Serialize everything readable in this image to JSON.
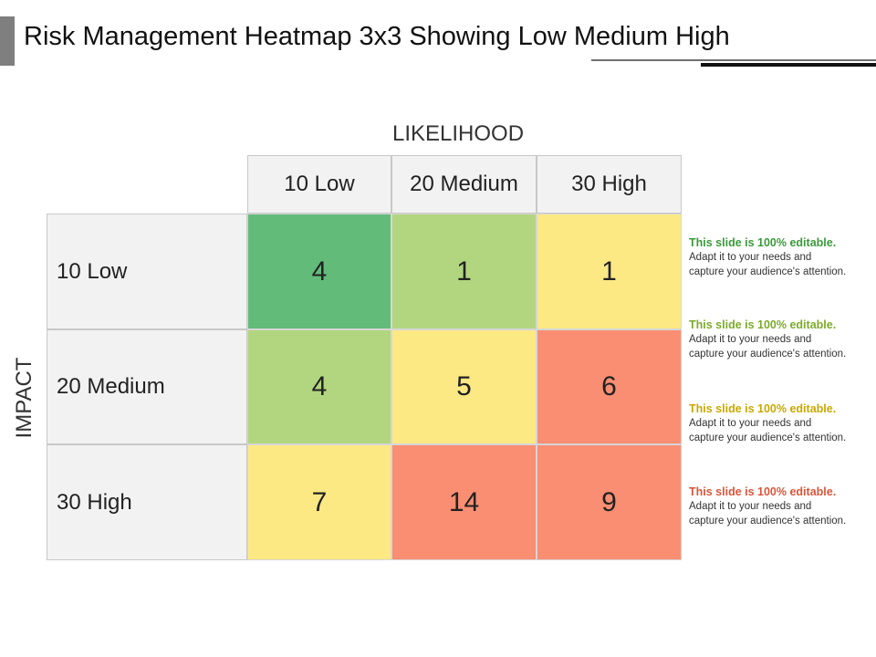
{
  "title": "Risk Management Heatmap 3x3 Showing Low Medium High",
  "chart_data": {
    "type": "heatmap",
    "xlabel": "LIKELIHOOD",
    "ylabel": "IMPACT",
    "x_categories": [
      "10 Low",
      "20 Medium",
      "30 High"
    ],
    "y_categories": [
      "10 Low",
      "20 Medium",
      "30 High"
    ],
    "values": [
      [
        4,
        1,
        1
      ],
      [
        4,
        5,
        6
      ],
      [
        7,
        14,
        9
      ]
    ],
    "cell_colors": [
      [
        "#63bb7a",
        "#b1d67f",
        "#fde984"
      ],
      [
        "#b1d67f",
        "#fde984",
        "#f98e72"
      ],
      [
        "#fde984",
        "#f98e72",
        "#f98e72"
      ]
    ]
  },
  "notes": [
    {
      "heading": "This slide is 100% editable.",
      "body": "Adapt it to your needs and\ncapture your audience's attention.",
      "color": "#3a9a3a"
    },
    {
      "heading": "This slide is 100% editable.",
      "body": "Adapt it to your needs and\ncapture your audience's attention.",
      "color": "#7cab2a"
    },
    {
      "heading": "This slide is 100% editable.",
      "body": "Adapt it to your needs and\ncapture your audience's attention.",
      "color": "#c9a800"
    },
    {
      "heading": "This slide is 100% editable.",
      "body": "Adapt it to your needs and\ncapture your audience's attention.",
      "color": "#d9553a"
    }
  ]
}
